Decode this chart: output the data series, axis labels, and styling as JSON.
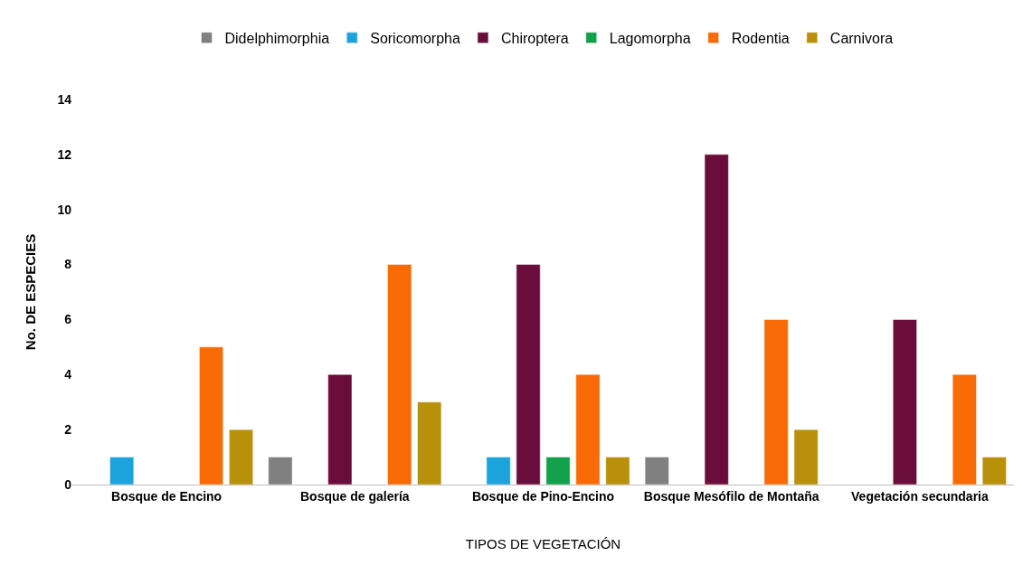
{
  "chart_data": {
    "type": "bar",
    "xlabel": "TIPOS DE VEGETACIÓN",
    "ylabel": "No. DE ESPECIES",
    "categories": [
      "Bosque de Encino",
      "Bosque de galería",
      "Bosque de Pino-Encino",
      "Bosque Mesófilo de Montaña",
      "Vegetación secundaria"
    ],
    "series": [
      {
        "name": "Didelphimorphia",
        "color": "#808080",
        "values": [
          null,
          1,
          null,
          1,
          null
        ]
      },
      {
        "name": "Soricomorpha",
        "color": "#1ca3dc",
        "values": [
          1,
          null,
          1,
          null,
          null
        ]
      },
      {
        "name": "Chiroptera",
        "color": "#6b0d3a",
        "values": [
          null,
          4,
          8,
          12,
          6
        ]
      },
      {
        "name": "Lagomorpha",
        "color": "#13a04a",
        "values": [
          null,
          null,
          1,
          null,
          null
        ]
      },
      {
        "name": "Rodentia",
        "color": "#f96b06",
        "values": [
          5,
          8,
          4,
          6,
          4
        ]
      },
      {
        "name": "Carnivora",
        "color": "#b8900a",
        "values": [
          2,
          3,
          1,
          2,
          1
        ]
      }
    ],
    "ylim": [
      0,
      14
    ],
    "yticks": [
      0,
      2,
      4,
      6,
      8,
      10,
      12,
      14
    ],
    "grid": false,
    "legend": "top"
  }
}
